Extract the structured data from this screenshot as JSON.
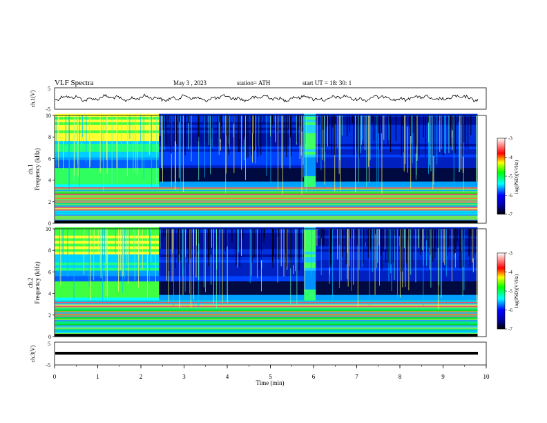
{
  "header": {
    "title": "VLF  Spectra",
    "date": "May 3  , 2023",
    "station": "station= ATH",
    "start": "start  UT  =    18: 30: 1"
  },
  "chart_data": [
    {
      "type": "line",
      "name": "ch1-waveform",
      "ylabel": "ch.1(V)",
      "ylim": [
        -5,
        5
      ],
      "yticks": [
        "5",
        "-5"
      ],
      "x_range_min": [
        0,
        9.8
      ]
    },
    {
      "type": "heatmap",
      "name": "ch1-spectrogram",
      "ylabel": "ch.1\nFrequency  (kHz)",
      "ylim": [
        0,
        10
      ],
      "yticks": [
        "0",
        "2",
        "4",
        "6",
        "8",
        "10"
      ],
      "colorbar": {
        "label": "log(PSD)(V²/Hz)",
        "range": [
          -7,
          -3
        ],
        "ticks": [
          "-3",
          "-4",
          "-5",
          "-6",
          "-7"
        ]
      },
      "regions": [
        {
          "t": [
            0,
            2.4
          ],
          "note": "high noise above 6 kHz, green 3.6-4 kHz band"
        },
        {
          "t": [
            2.4,
            5.8
          ],
          "note": "quiet dark band 4-5 kHz"
        },
        {
          "t": [
            5.8,
            6.05
          ],
          "note": "elevated band"
        },
        {
          "t": [
            6.05,
            9.8
          ],
          "note": "quiet dark band 4-5 kHz"
        }
      ]
    },
    {
      "type": "heatmap",
      "name": "ch2-spectrogram",
      "ylabel": "ch.2\nFrequency  (kHz)",
      "ylim": [
        0,
        10
      ],
      "yticks": [
        "0",
        "2",
        "4",
        "6",
        "8",
        "10"
      ],
      "colorbar": {
        "label": "log(PSD)(V²/Hz)",
        "range": [
          -7,
          -3
        ],
        "ticks": [
          "-3",
          "-4",
          "-5",
          "-6",
          "-7"
        ]
      }
    },
    {
      "type": "line",
      "name": "ch3-waveform",
      "ylabel": "ch.3(V)",
      "ylim": [
        -5,
        5
      ],
      "yticks": [
        "5",
        "-5"
      ]
    }
  ],
  "xaxis": {
    "label": "Time  (min)",
    "ticks": [
      "0",
      "1",
      "2",
      "3",
      "4",
      "5",
      "6",
      "7",
      "8",
      "9",
      "10"
    ],
    "range": [
      0,
      10
    ]
  },
  "colors": {
    "dark_navy": "#000a33",
    "blue": "#0000ff",
    "cyan": "#00ffff",
    "green": "#00ff00",
    "yellow": "#ffff00",
    "red": "#ff0000",
    "pink": "#ffd0d0"
  }
}
